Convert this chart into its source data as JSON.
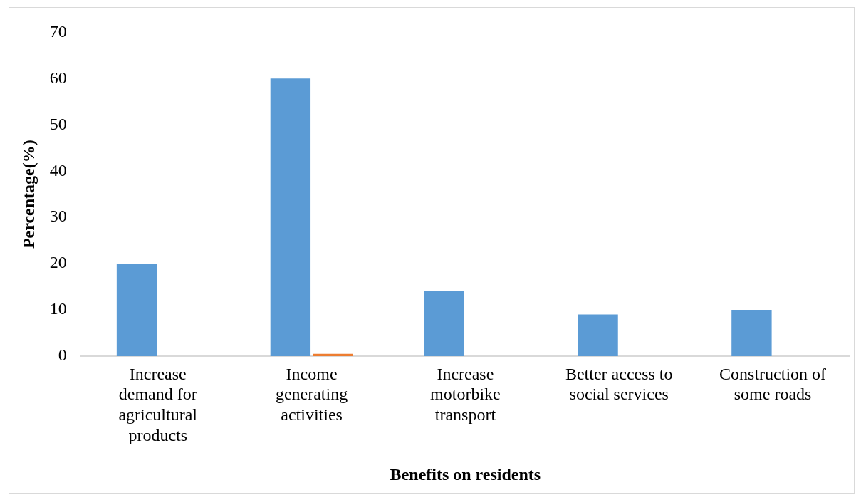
{
  "chart_data": {
    "type": "bar",
    "xlabel": "Benefits on residents",
    "ylabel": "Percentage(%)",
    "categories": [
      "Increase demand for agricultural products",
      "Income generating activities",
      "Increase motorbike transport",
      "Better access to social services",
      "Construction of some roads"
    ],
    "series": [
      {
        "color": "#5b9bd5",
        "values": [
          20,
          60,
          14,
          9,
          10
        ]
      },
      {
        "colors": [
          "#f2dccb",
          "#ed7d31",
          "#ed7d31",
          "#ed7d31",
          "#ed7d31"
        ],
        "values": [
          null,
          0.5,
          0,
          0,
          0
        ]
      }
    ],
    "ylim": [
      0,
      70
    ],
    "yticks": [
      0,
      10,
      20,
      30,
      40,
      50,
      60,
      70
    ],
    "grid": false,
    "legend": false
  }
}
